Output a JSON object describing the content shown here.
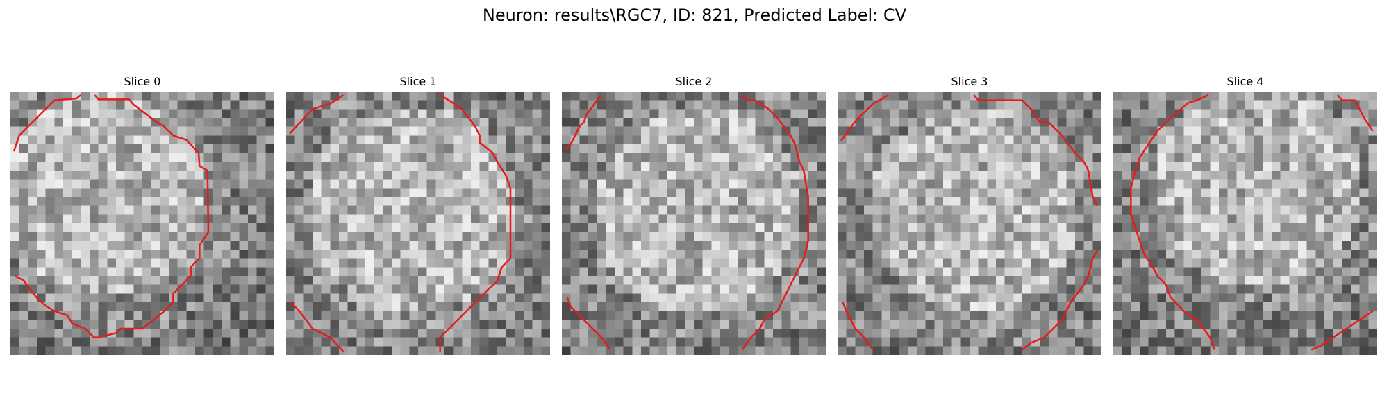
{
  "figure": {
    "title": "Neuron: results\\RGC7, ID: 821, Predicted Label: CV"
  },
  "grid_size": 30,
  "colors": {
    "contour": "#e61c1c",
    "pixel_min": "#0a0a0a",
    "pixel_max": "#f2f2f2"
  },
  "panels": [
    {
      "title": "Slice 0",
      "contours": [
        [
          [
            0.4,
            6.8
          ],
          [
            1,
            5
          ],
          [
            4,
            2
          ],
          [
            5,
            1
          ],
          [
            7.5,
            0.8
          ],
          [
            8,
            0.4
          ]
        ],
        [
          [
            9.6,
            0.4
          ],
          [
            10,
            0.9
          ],
          [
            13.5,
            0.9
          ],
          [
            14,
            1.5
          ],
          [
            16.5,
            3.4
          ],
          [
            17.5,
            4
          ],
          [
            18.5,
            5
          ],
          [
            20,
            5.5
          ],
          [
            21.4,
            7
          ],
          [
            21.5,
            8.5
          ],
          [
            22.4,
            9
          ],
          [
            22.5,
            16
          ],
          [
            21.5,
            17.5
          ],
          [
            21.5,
            19
          ],
          [
            20.5,
            20
          ],
          [
            20.5,
            21
          ],
          [
            19.5,
            22
          ],
          [
            18.5,
            23
          ],
          [
            18.5,
            24
          ],
          [
            17.5,
            25
          ],
          [
            15,
            27
          ],
          [
            12.5,
            27
          ],
          [
            12,
            27.5
          ],
          [
            10,
            28
          ],
          [
            9.5,
            28
          ],
          [
            8.5,
            27
          ],
          [
            7,
            26.4
          ],
          [
            6.5,
            25.5
          ],
          [
            5,
            25
          ],
          [
            4,
            24.4
          ],
          [
            3,
            23.5
          ],
          [
            1.5,
            21.5
          ],
          [
            0.5,
            21
          ]
        ]
      ]
    },
    {
      "title": "Slice 1",
      "contours": [
        [
          [
            0.4,
            4.8
          ],
          [
            3,
            2
          ],
          [
            5,
            1.4
          ],
          [
            6.5,
            0.4
          ]
        ],
        [
          [
            17.5,
            0.4
          ],
          [
            18.5,
            1
          ],
          [
            20,
            2
          ],
          [
            21.5,
            4
          ],
          [
            22,
            5
          ],
          [
            22,
            5.8
          ],
          [
            23.5,
            7
          ],
          [
            24,
            8
          ],
          [
            25,
            9.6
          ],
          [
            25.5,
            11
          ],
          [
            25.5,
            19
          ],
          [
            24.5,
            20
          ],
          [
            24,
            21.6
          ],
          [
            23,
            22.5
          ],
          [
            22.5,
            23
          ],
          [
            21.5,
            24
          ],
          [
            19.5,
            26
          ],
          [
            17.5,
            28
          ],
          [
            17.5,
            29.6
          ]
        ],
        [
          [
            0.5,
            24
          ],
          [
            1.5,
            25
          ],
          [
            3,
            27
          ],
          [
            4,
            27.5
          ],
          [
            5,
            28
          ],
          [
            6.5,
            29.6
          ]
        ]
      ]
    },
    {
      "title": "Slice 2",
      "contours": [
        [
          [
            0.4,
            6.6
          ],
          [
            1,
            6
          ],
          [
            1.5,
            5
          ],
          [
            2,
            4
          ],
          [
            2.5,
            3.5
          ],
          [
            2.8,
            2.6
          ],
          [
            4.5,
            0.4
          ]
        ],
        [
          [
            20.5,
            0.4
          ],
          [
            21,
            1
          ],
          [
            22,
            1
          ],
          [
            23.5,
            2
          ],
          [
            24.5,
            3
          ],
          [
            26,
            5
          ],
          [
            26.5,
            6
          ],
          [
            27,
            8
          ],
          [
            27.5,
            9
          ],
          [
            28,
            12
          ],
          [
            28,
            17
          ],
          [
            27.5,
            19
          ],
          [
            26.5,
            21
          ],
          [
            25.5,
            23
          ],
          [
            24.5,
            25
          ],
          [
            23,
            26
          ],
          [
            22.5,
            27
          ],
          [
            21.5,
            28
          ],
          [
            20.5,
            29.4
          ]
        ],
        [
          [
            0.6,
            23.4
          ],
          [
            1,
            24.5
          ],
          [
            2.5,
            26
          ],
          [
            3.5,
            27
          ],
          [
            4.5,
            28
          ],
          [
            5.5,
            29.4
          ]
        ]
      ]
    },
    {
      "title": "Slice 3",
      "contours": [
        [
          [
            0.4,
            5.6
          ],
          [
            2,
            3.4
          ],
          [
            4,
            1.4
          ],
          [
            5.8,
            0.4
          ]
        ],
        [
          [
            15.5,
            0.4
          ],
          [
            16,
            1
          ],
          [
            21,
            1
          ],
          [
            22,
            2
          ],
          [
            23,
            3.5
          ],
          [
            24,
            3.5
          ],
          [
            25.5,
            5
          ],
          [
            27,
            7
          ],
          [
            28,
            8
          ],
          [
            28.5,
            9
          ],
          [
            29,
            12
          ],
          [
            29.5,
            13
          ]
        ],
        [
          [
            29.6,
            18
          ],
          [
            29,
            19
          ],
          [
            28.5,
            21
          ],
          [
            28,
            22
          ],
          [
            26.5,
            24
          ],
          [
            25.5,
            26
          ],
          [
            24.5,
            27
          ],
          [
            23.5,
            28
          ],
          [
            22,
            28.6
          ],
          [
            21,
            29.4
          ]
        ],
        [
          [
            0.6,
            24
          ],
          [
            1,
            25
          ],
          [
            1.5,
            26
          ],
          [
            2,
            27
          ],
          [
            3,
            28
          ],
          [
            4,
            29.4
          ]
        ]
      ]
    },
    {
      "title": "Slice 4",
      "contours": [
        [
          [
            25.5,
            0.4
          ],
          [
            26,
            1
          ],
          [
            27.5,
            1
          ],
          [
            28.5,
            3
          ],
          [
            29.5,
            4.5
          ]
        ],
        [
          [
            10.8,
            0.4
          ],
          [
            9.5,
            1
          ],
          [
            8.5,
            1.3
          ],
          [
            6.5,
            3
          ],
          [
            5,
            4.5
          ],
          [
            4,
            6
          ],
          [
            3,
            7.5
          ],
          [
            2.5,
            9
          ],
          [
            2,
            11
          ],
          [
            2,
            14
          ],
          [
            2.5,
            15.5
          ],
          [
            3,
            17
          ],
          [
            3.5,
            18.5
          ],
          [
            4.5,
            20
          ],
          [
            5,
            21
          ],
          [
            6,
            22
          ],
          [
            6.5,
            23.4
          ],
          [
            8,
            25
          ],
          [
            9.5,
            26
          ],
          [
            11,
            28
          ],
          [
            11.5,
            29.4
          ]
        ],
        [
          [
            22.5,
            29.4
          ],
          [
            23.5,
            29
          ],
          [
            25,
            28
          ],
          [
            26.5,
            27
          ],
          [
            28,
            26
          ],
          [
            29.5,
            25
          ]
        ]
      ]
    }
  ]
}
